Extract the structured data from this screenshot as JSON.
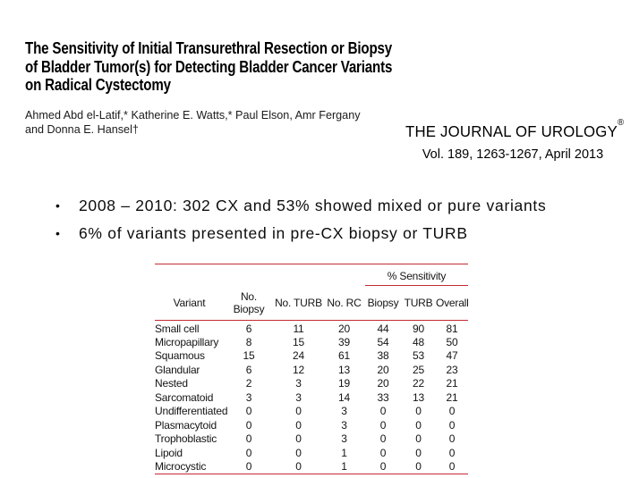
{
  "paper": {
    "title_lines": [
      "The Sensitivity of Initial Transurethral Resection or Biopsy",
      "of Bladder Tumor(s) for Detecting Bladder Cancer Variants",
      "on Radical Cystectomy"
    ],
    "authors_lines": [
      "Ahmed Abd el-Latif,* Katherine E. Watts,* Paul Elson, Amr Fergany",
      "and Donna E. Hansel†"
    ],
    "journal": {
      "name": "THE JOURNAL OF UROLOGY",
      "registered_mark": "®",
      "citation": "Vol. 189, 1263-1267, April 2013"
    }
  },
  "bullets": {
    "marker": "•",
    "items": [
      "2008 – 2010: 302 CX and 53% showed mixed or pure variants",
      "6% of variants presented in pre-CX biopsy or TURB"
    ]
  },
  "table": {
    "span_header": "% Sensitivity",
    "columns": [
      "Variant",
      "No. Biopsy",
      "No. TURB",
      "No. RC",
      "Biopsy",
      "TURB",
      "Overall"
    ],
    "rows": [
      [
        "Small cell",
        6,
        11,
        20,
        44,
        90,
        81
      ],
      [
        "Micropapillary",
        8,
        15,
        39,
        54,
        48,
        50
      ],
      [
        "Squamous",
        15,
        24,
        61,
        38,
        53,
        47
      ],
      [
        "Glandular",
        6,
        12,
        13,
        20,
        25,
        23
      ],
      [
        "Nested",
        2,
        3,
        19,
        20,
        22,
        21
      ],
      [
        "Sarcomatoid",
        3,
        3,
        14,
        33,
        13,
        21
      ],
      [
        "Undifferentiated",
        0,
        0,
        3,
        0,
        0,
        0
      ],
      [
        "Plasmacytoid",
        0,
        0,
        3,
        0,
        0,
        0
      ],
      [
        "Trophoblastic",
        0,
        0,
        3,
        0,
        0,
        0
      ],
      [
        "Lipoid",
        0,
        0,
        1,
        0,
        0,
        0
      ],
      [
        "Microcystic",
        0,
        0,
        1,
        0,
        0,
        0
      ]
    ]
  },
  "colors": {
    "rule_red": "#c42a33",
    "text": "#111111",
    "background": "#ffffff"
  }
}
